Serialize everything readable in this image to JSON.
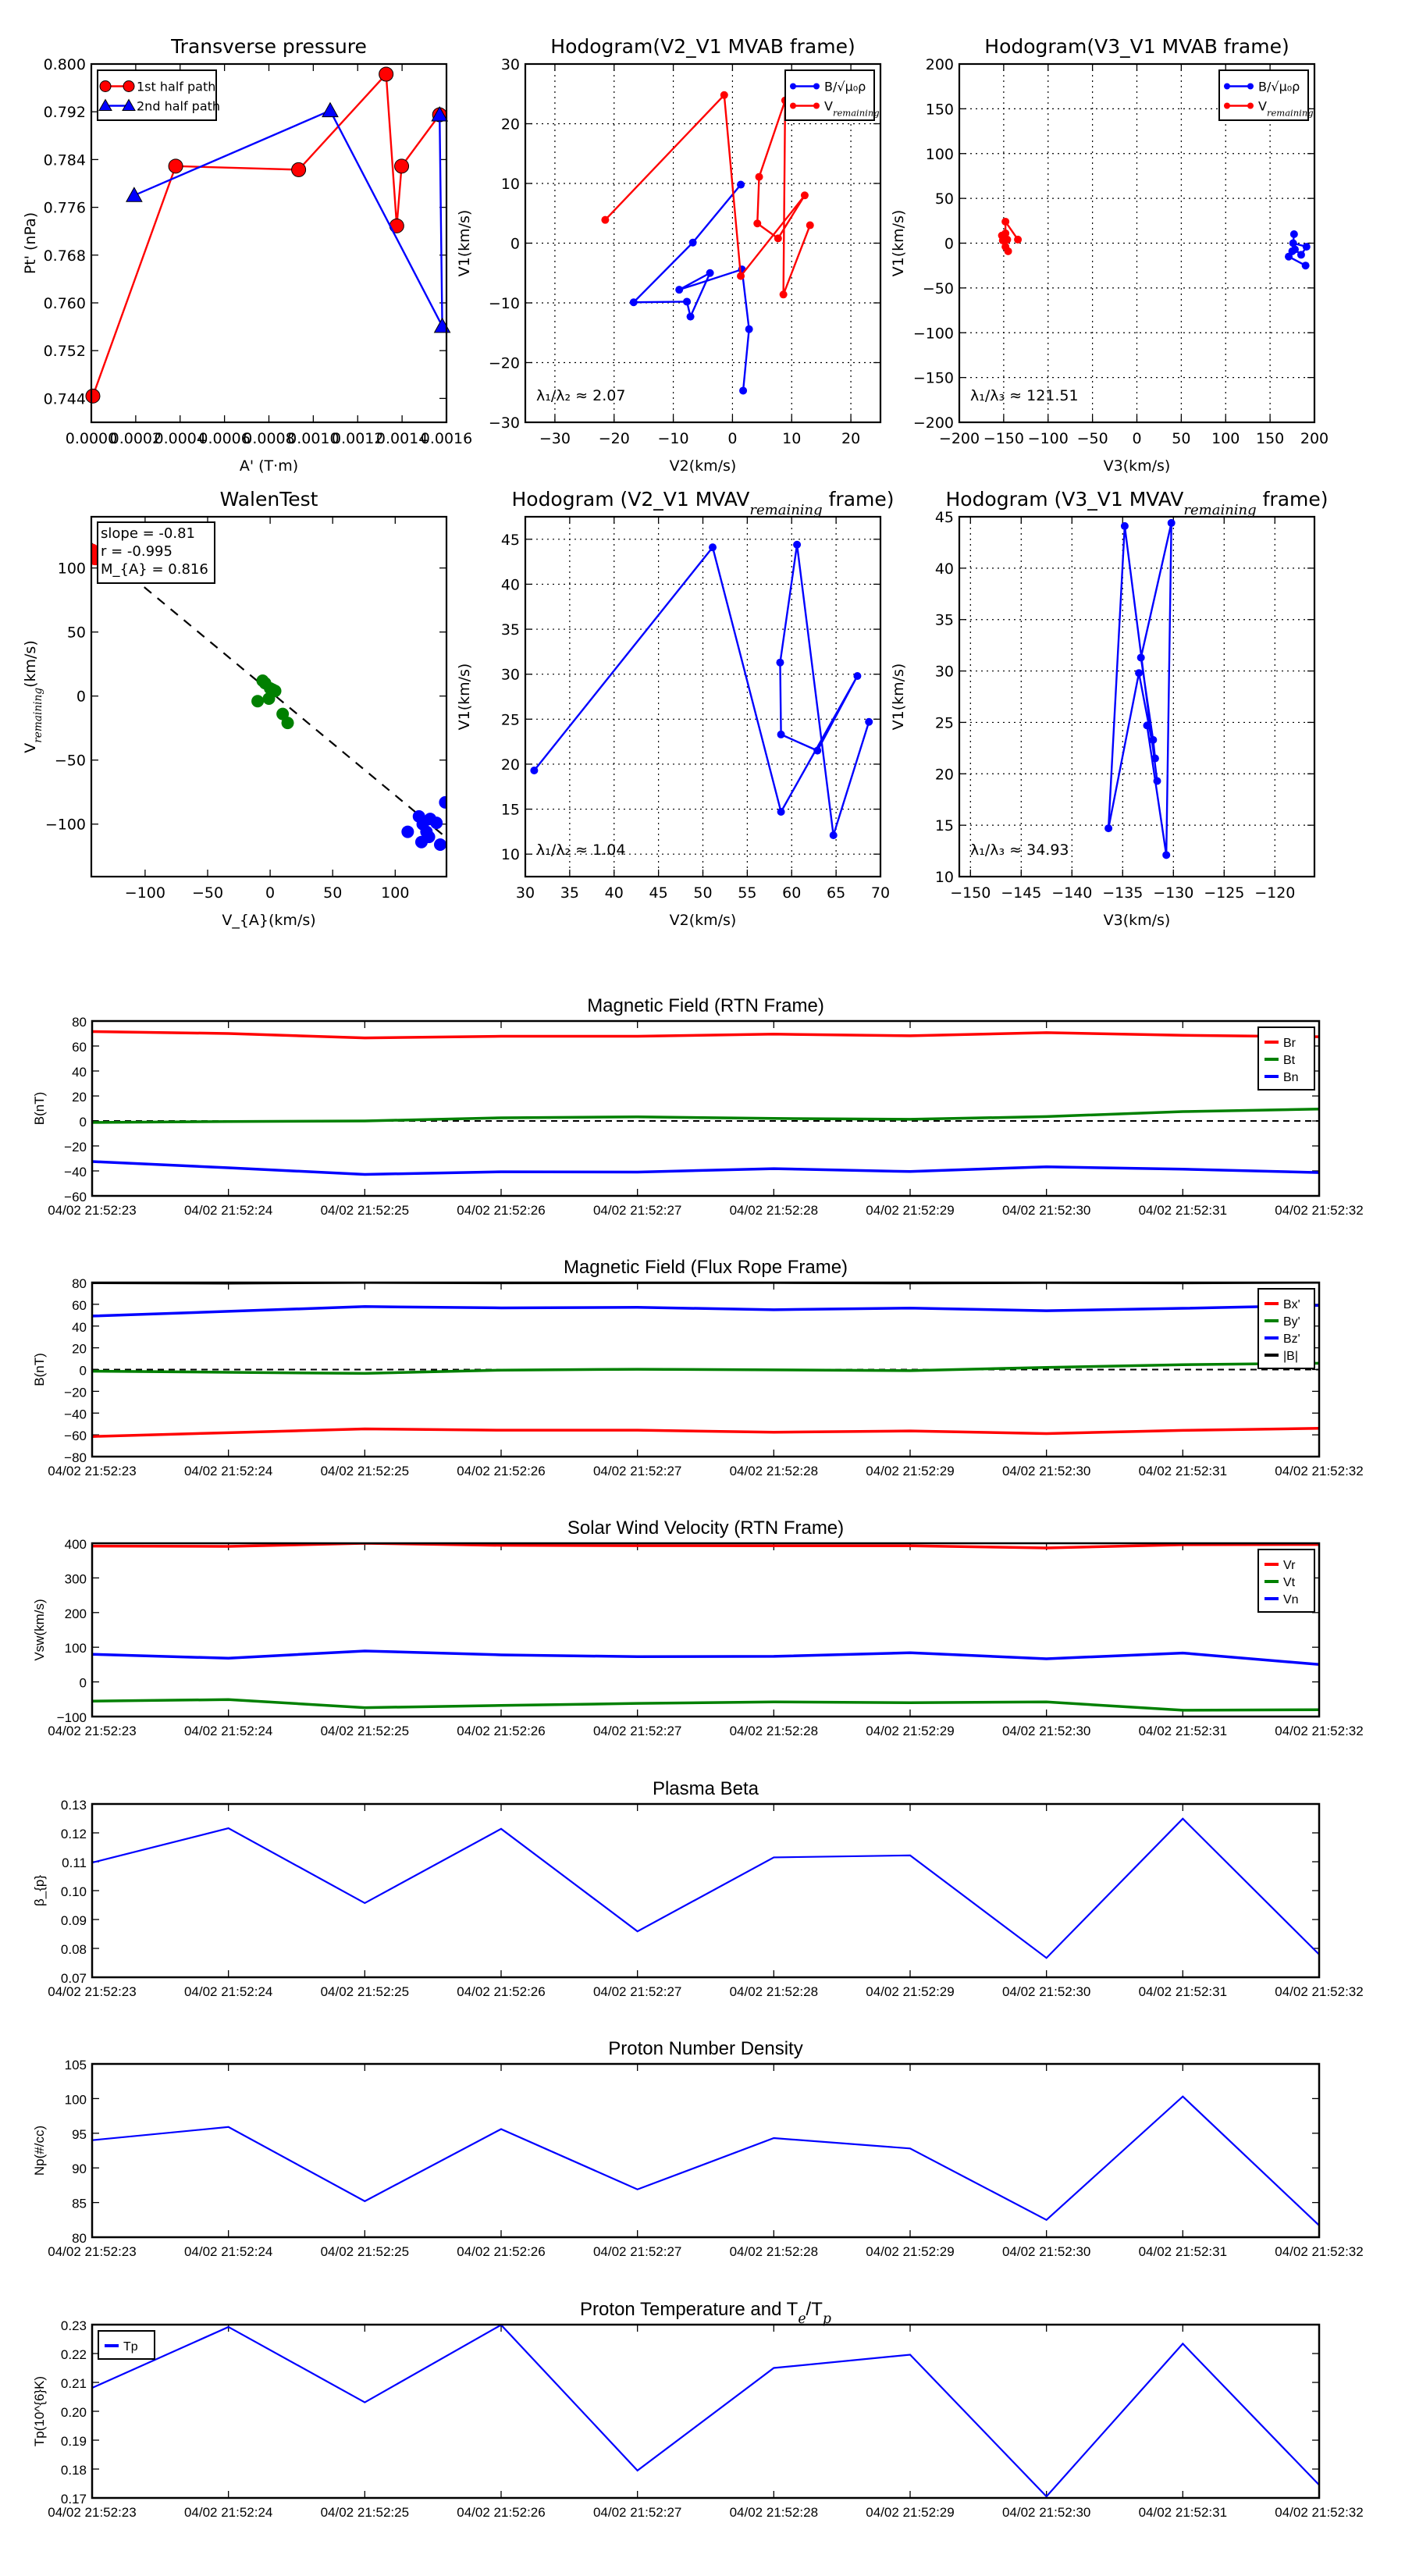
{
  "chart_data": [
    {
      "key": "transverse_pressure",
      "type": "line",
      "title": "Transverse pressure",
      "xlabel": "A' (T·m)",
      "ylabel": "Pt' (nPa)",
      "xlim": [
        0,
        0.0016
      ],
      "ylim": [
        0.74,
        0.8
      ],
      "grid": false,
      "xticks": [
        0,
        0.0002,
        0.0004,
        0.0006,
        0.0008,
        0.001,
        0.0012,
        0.0014,
        0.0016
      ],
      "xtick_labels": [
        "0.0000",
        "0.0002",
        "0.0004",
        "0.0006",
        "0.0008",
        "0.0010",
        "0.0012",
        "0.0014",
        "0.0016"
      ],
      "yticks": [
        0.744,
        0.752,
        0.76,
        0.768,
        0.776,
        0.784,
        0.792,
        0.8
      ],
      "ytick_labels": [
        "0.744",
        "0.752",
        "0.760",
        "0.768",
        "0.776",
        "0.784",
        "0.792",
        "0.800"
      ],
      "legend": "top-left",
      "series": [
        {
          "name": "1st half path",
          "color": "#ff0000",
          "marker": "circle",
          "x": [
            7e-06,
            0.00038,
            0.000934,
            0.001328,
            0.001376,
            0.001398,
            0.001569
          ],
          "y": [
            0.7444,
            0.7829,
            0.7823,
            0.7983,
            0.7729,
            0.7829,
            0.7915
          ]
        },
        {
          "name": "2nd half path",
          "color": "#0000ff",
          "marker": "triangle",
          "x": [
            0.000193,
            0.001076,
            0.001581,
            0.001569
          ],
          "y": [
            0.778,
            0.7922,
            0.7561,
            0.7915
          ]
        }
      ]
    },
    {
      "key": "hodogram_mvab_v2v1",
      "type": "line",
      "title": "Hodogram(V2_V1 MVAB frame)",
      "xlabel": "V2(km/s)",
      "ylabel": "V1(km/s)",
      "xlim": [
        -35,
        25
      ],
      "ylim": [
        -30,
        30
      ],
      "grid": true,
      "xticks": [
        -30,
        -20,
        -10,
        0,
        10,
        20
      ],
      "xtick_labels": [
        "−30",
        "−20",
        "−10",
        "0",
        "10",
        "20"
      ],
      "yticks": [
        -30,
        -20,
        -10,
        0,
        10,
        20,
        30
      ],
      "ytick_labels": [
        "−30",
        "−20",
        "−10",
        "0",
        "10",
        "20",
        "30"
      ],
      "legend": "top-right",
      "annotation": "λ₁/λ₂ ≈ 2.07",
      "series": [
        {
          "name": "B/√μ₀ρ",
          "color": "#0000ff",
          "marker": "dot",
          "x": [
            1.4,
            -6.7,
            -16.7,
            -7.7,
            -7.1,
            -3.8,
            -9.0,
            1.6,
            2.8,
            1.8
          ],
          "y": [
            9.8,
            0.1,
            -9.9,
            -9.8,
            -12.3,
            -5.0,
            -7.8,
            -4.4,
            -14.4,
            -24.7
          ]
        },
        {
          "name": "V_{remaining}",
          "color": "#ff0000",
          "marker": "dot",
          "x": [
            -21.5,
            -1.4,
            1.4,
            12.2,
            7.7,
            4.2,
            4.5,
            8.9,
            8.6,
            13.1
          ],
          "y": [
            3.9,
            24.8,
            -5.5,
            8.0,
            0.8,
            3.3,
            11.1,
            23.9,
            -8.6,
            3.0
          ]
        }
      ]
    },
    {
      "key": "hodogram_mvab_v3v1",
      "type": "line",
      "title": "Hodogram(V3_V1 MVAB frame)",
      "xlabel": "V3(km/s)",
      "ylabel": "V1(km/s)",
      "xlim": [
        -200,
        200
      ],
      "ylim": [
        -200,
        200
      ],
      "grid": true,
      "xticks": [
        -200,
        -150,
        -100,
        -50,
        0,
        50,
        100,
        150,
        200
      ],
      "xtick_labels": [
        "−200",
        "−150",
        "−100",
        "−50",
        "0",
        "50",
        "100",
        "150",
        "200"
      ],
      "yticks": [
        -200,
        -150,
        -100,
        -50,
        0,
        50,
        100,
        150,
        200
      ],
      "ytick_labels": [
        "−200",
        "−150",
        "−100",
        "−50",
        "0",
        "50",
        "100",
        "150",
        "200"
      ],
      "legend": "top-right",
      "annotation": "λ₁/λ₃ ≈ 121.51",
      "series": [
        {
          "name": "B/√μ₀ρ",
          "color": "#0000ff",
          "marker": "dot",
          "x": [
            177,
            176,
            191,
            185,
            178,
            175,
            171,
            190
          ],
          "y": [
            10,
            0,
            -4,
            -13,
            -7,
            -9,
            -15,
            -25
          ]
        },
        {
          "name": "V_{remaining}",
          "color": "#ff0000",
          "marker": "dot",
          "x": [
            -134,
            -148,
            -148,
            -152,
            -151,
            -146,
            -148,
            -145
          ],
          "y": [
            4,
            24,
            11,
            8.5,
            3,
            4,
            -4,
            -9
          ]
        }
      ]
    },
    {
      "key": "walen_test",
      "type": "scatter",
      "title": "WalenTest",
      "xlabel": "V_{A}(km/s)",
      "ylabel": "V_{remaining}(km/s)",
      "xlim": [
        -143,
        141
      ],
      "ylim": [
        -141,
        140
      ],
      "grid": false,
      "xticks": [
        -100,
        -50,
        0,
        50,
        100
      ],
      "xtick_labels": [
        "−100",
        "−50",
        "0",
        "50",
        "100"
      ],
      "yticks": [
        -100,
        -50,
        0,
        50,
        100
      ],
      "ytick_labels": [
        "−100",
        "−50",
        "0",
        "50",
        "100"
      ],
      "stats": [
        "slope = -0.81",
        "r = -0.995",
        "M_{A} = 0.816"
      ],
      "series": [
        {
          "name": "fit",
          "color": "#000000",
          "dashed": true,
          "x": [
            -143,
            141
          ],
          "y": [
            119.3,
            -110.7
          ]
        },
        {
          "name": "red",
          "color": "#ff0000",
          "marker": "bigdot",
          "noline": true,
          "x": [
            -142,
            -140
          ],
          "y": [
            114,
            107
          ]
        },
        {
          "name": "green",
          "color": "#008000",
          "marker": "bigdot",
          "noline": true,
          "x": [
            -6,
            -4,
            0,
            4,
            -1,
            -10,
            10,
            14,
            2
          ],
          "y": [
            12,
            10,
            6,
            4,
            -2,
            -4,
            -14,
            -21,
            5
          ]
        },
        {
          "name": "blue",
          "color": "#0000ff",
          "marker": "bigdot",
          "noline": true,
          "x": [
            110,
            119,
            122,
            121,
            125,
            127,
            128,
            133,
            136,
            140
          ],
          "y": [
            -106,
            -94,
            -100,
            -114,
            -106,
            -110,
            -96,
            -99,
            -116,
            -83
          ]
        }
      ]
    },
    {
      "key": "hodogram_mvav_v2v1",
      "type": "line",
      "title": "Hodogram (V2_V1 MVAV_{remaining} frame)",
      "xlabel": "V2(km/s)",
      "ylabel": "V1(km/s)",
      "xlim": [
        30,
        70
      ],
      "ylim": [
        7.5,
        47.5
      ],
      "grid": true,
      "xticks": [
        30,
        35,
        40,
        45,
        50,
        55,
        60,
        65,
        70
      ],
      "xtick_labels": [
        "30",
        "35",
        "40",
        "45",
        "50",
        "55",
        "60",
        "65",
        "70"
      ],
      "yticks": [
        10,
        15,
        20,
        25,
        30,
        35,
        40,
        45
      ],
      "ytick_labels": [
        "10",
        "15",
        "20",
        "25",
        "30",
        "35",
        "40",
        "45"
      ],
      "annotation": "λ₁/λ₂ ≈ 1.04",
      "series": [
        {
          "name": "V",
          "color": "#0000ff",
          "marker": "dot",
          "x": [
            31.0,
            51.1,
            58.8,
            67.4,
            62.9,
            58.8,
            58.7,
            60.6,
            64.7,
            68.7
          ],
          "y": [
            19.3,
            44.1,
            14.7,
            29.8,
            21.5,
            23.3,
            31.3,
            44.4,
            12.1,
            24.7
          ]
        }
      ]
    },
    {
      "key": "hodogram_mvav_v3v1",
      "type": "line",
      "title": "Hodogram (V3_V1 MVAV_{remaining} frame)",
      "xlabel": "V3(km/s)",
      "ylabel": "V1(km/s)",
      "xlim": [
        -151.1,
        -116.1
      ],
      "ylim": [
        10,
        45
      ],
      "grid": true,
      "xticks": [
        -150,
        -145,
        -140,
        -135,
        -130,
        -125,
        -120
      ],
      "xtick_labels": [
        "−150",
        "−145",
        "−140",
        "−135",
        "−130",
        "−125",
        "−120"
      ],
      "yticks": [
        10,
        15,
        20,
        25,
        30,
        35,
        40,
        45
      ],
      "ytick_labels": [
        "10",
        "15",
        "20",
        "25",
        "30",
        "35",
        "40",
        "45"
      ],
      "annotation": "λ₁/λ₃ ≈ 34.93",
      "series": [
        {
          "name": "V",
          "color": "#0000ff",
          "marker": "dot",
          "x": [
            -131.6,
            -134.8,
            -136.4,
            -133.4,
            -131.8,
            -132.0,
            -133.2,
            -130.2,
            -130.7,
            -132.6
          ],
          "y": [
            19.3,
            44.1,
            14.7,
            29.8,
            21.5,
            23.3,
            31.3,
            44.4,
            12.1,
            24.7
          ]
        }
      ]
    },
    {
      "key": "mag_rtn",
      "type": "line",
      "timeseries": true,
      "title": "Magnetic Field (RTN Frame)",
      "ylabel": "B(nT)",
      "ylim": [
        -60,
        80
      ],
      "zero_line": true,
      "yticks": [
        -60,
        -40,
        -20,
        0,
        20,
        40,
        60,
        80
      ],
      "ytick_labels": [
        "−60",
        "−40",
        "−20",
        "0",
        "20",
        "40",
        "60",
        "80"
      ],
      "legend": "top-right",
      "series": [
        {
          "name": "Br",
          "color": "#ff0000",
          "y": [
            71.6,
            70.0,
            66.5,
            67.8,
            67.8,
            69.5,
            68.2,
            70.7,
            68.6,
            67.4
          ]
        },
        {
          "name": "Bt",
          "color": "#008000",
          "y": [
            -1.2,
            -0.5,
            0.0,
            2.5,
            3.3,
            2.0,
            1.3,
            3.5,
            7.5,
            9.5
          ]
        },
        {
          "name": "Bn",
          "color": "#0000ff",
          "y": [
            -32.5,
            -37.5,
            -42.8,
            -40.7,
            -40.9,
            -38.2,
            -40.5,
            -36.7,
            -38.6,
            -41.3
          ]
        }
      ]
    },
    {
      "key": "mag_fluxrope",
      "type": "line",
      "timeseries": true,
      "title": "Magnetic Field (Flux Rope Frame)",
      "ylabel": "B(nT)",
      "ylim": [
        -80,
        80
      ],
      "zero_line": true,
      "yticks": [
        -80,
        -60,
        -40,
        -20,
        0,
        20,
        40,
        60,
        80
      ],
      "ytick_labels": [
        "−80",
        "−60",
        "−40",
        "−20",
        "0",
        "20",
        "40",
        "60",
        "80"
      ],
      "legend": "top-right",
      "series": [
        {
          "name": "Bx'",
          "color": "#ff0000",
          "y": [
            -61.5,
            -58.0,
            -54.5,
            -55.7,
            -55.7,
            -57.6,
            -56.4,
            -58.8,
            -55.9,
            -54.0
          ]
        },
        {
          "name": "By'",
          "color": "#008000",
          "y": [
            -1.5,
            -2.5,
            -3.5,
            -0.5,
            0.3,
            -0.3,
            -1.0,
            2.0,
            4.5,
            5.8
          ]
        },
        {
          "name": "Bz'",
          "color": "#0000ff",
          "y": [
            49.2,
            53.5,
            57.9,
            56.7,
            57.2,
            55.0,
            56.5,
            54.1,
            56.3,
            59.0
          ]
        },
        {
          "name": "|B|",
          "color": "#000000",
          "y": [
            79.8,
            79.5,
            80.1,
            79.7,
            79.9,
            80.0,
            79.6,
            80.0,
            79.7,
            80.2
          ]
        }
      ]
    },
    {
      "key": "velocity_rtn",
      "type": "line",
      "timeseries": true,
      "title": "Solar Wind Velocity (RTN Frame)",
      "ylabel": "Vsw(km/s)",
      "ylim": [
        -100,
        400
      ],
      "yticks": [
        -100,
        0,
        100,
        200,
        300,
        400
      ],
      "ytick_labels": [
        "−100",
        "0",
        "100",
        "200",
        "300",
        "400"
      ],
      "legend": "top-right",
      "series": [
        {
          "name": "Vr",
          "color": "#ff0000",
          "y": [
            391.9,
            391.0,
            400.0,
            394.0,
            393.0,
            392.7,
            392.7,
            386.6,
            395.7,
            396.4
          ]
        },
        {
          "name": "Vt",
          "color": "#008000",
          "y": [
            -55.6,
            -51.0,
            -74.3,
            -68.0,
            -62.0,
            -57.8,
            -60.0,
            -57.8,
            -81.8,
            -80.3
          ]
        },
        {
          "name": "Vn",
          "color": "#0000ff",
          "y": [
            79.6,
            68.3,
            89.3,
            78.0,
            72.8,
            73.6,
            84.0,
            66.8,
            83.3,
            50.3
          ]
        }
      ]
    },
    {
      "key": "plasma_beta",
      "type": "line",
      "timeseries": true,
      "title": "Plasma Beta",
      "ylabel": "β_{p}",
      "ylim": [
        0.07,
        0.13
      ],
      "yticks": [
        0.07,
        0.08,
        0.09,
        0.1,
        0.11,
        0.12,
        0.13
      ],
      "ytick_labels": [
        "0.07",
        "0.08",
        "0.09",
        "0.10",
        "0.11",
        "0.12",
        "0.13"
      ],
      "series": [
        {
          "name": "beta",
          "color": "#0000ff",
          "thin": true,
          "y": [
            0.1097,
            0.1216,
            0.0957,
            0.1214,
            0.0859,
            0.1115,
            0.1122,
            0.0767,
            0.1249,
            0.0779
          ]
        }
      ]
    },
    {
      "key": "proton_density",
      "type": "line",
      "timeseries": true,
      "title": "Proton Number Density",
      "ylabel": "Np(#/cc)",
      "ylim": [
        80,
        105
      ],
      "yticks": [
        80,
        85,
        90,
        95,
        100,
        105
      ],
      "ytick_labels": [
        "80",
        "85",
        "90",
        "95",
        "100",
        "105"
      ],
      "series": [
        {
          "name": "Np",
          "color": "#0000ff",
          "thin": true,
          "y": [
            94.0,
            95.9,
            85.2,
            95.6,
            86.9,
            94.3,
            92.8,
            82.5,
            100.3,
            81.7
          ]
        }
      ]
    },
    {
      "key": "proton_temperature",
      "type": "line",
      "timeseries": true,
      "title": "Proton Temperature and T_{e}/T_{p}",
      "ylabel": "Tp(10^{6}K)",
      "ylim": [
        0.17,
        0.23
      ],
      "yticks": [
        0.17,
        0.18,
        0.19,
        0.2,
        0.21,
        0.22,
        0.23
      ],
      "ytick_labels": [
        "0.17",
        "0.18",
        "0.19",
        "0.20",
        "0.21",
        "0.22",
        "0.23"
      ],
      "legend": "top-left",
      "series": [
        {
          "name": "Tp",
          "color": "#0000ff",
          "thin": true,
          "y": [
            0.2081,
            0.2292,
            0.2031,
            0.2299,
            0.1795,
            0.215,
            0.2196,
            0.1705,
            0.2234,
            0.1745
          ]
        }
      ]
    }
  ],
  "time_labels": [
    "04/02 21:52:23",
    "04/02 21:52:24",
    "04/02 21:52:25",
    "04/02 21:52:26",
    "04/02 21:52:27",
    "04/02 21:52:28",
    "04/02 21:52:29",
    "04/02 21:52:30",
    "04/02 21:52:31",
    "04/02 21:52:32"
  ]
}
